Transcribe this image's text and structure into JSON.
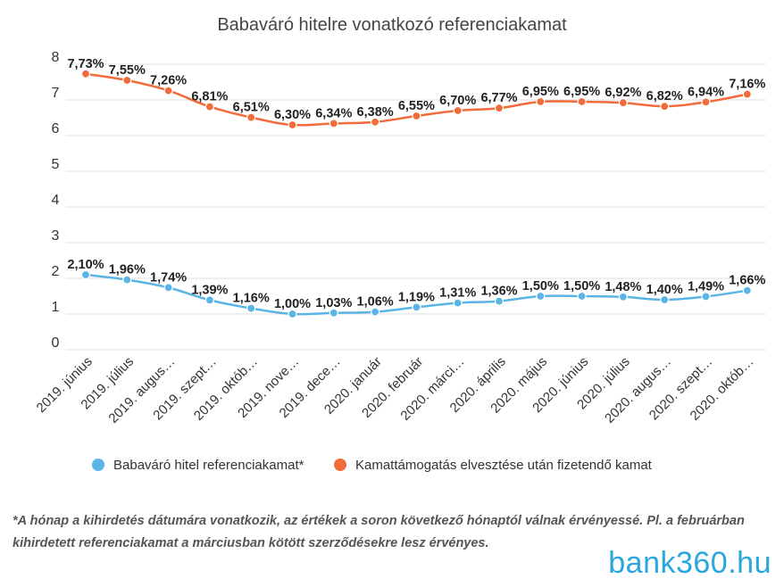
{
  "chart_data": {
    "type": "line",
    "title": "Babaváró hitelre vonatkozó referenciakamat",
    "categories": [
      "2019. június",
      "2019. július",
      "2019. augus…",
      "2019. szept…",
      "2019. októb…",
      "2019. nove…",
      "2019. dece…",
      "2020. január",
      "2020. február",
      "2020. márci…",
      "2020. április",
      "2020. május",
      "2020. június",
      "2020. július",
      "2020. augus…",
      "2020. szept…",
      "2020. októb…"
    ],
    "series": [
      {
        "name": "Babaváró hitel referenciakamat*",
        "color": "#5ab4e5",
        "values": [
          2.1,
          1.96,
          1.74,
          1.39,
          1.16,
          1.0,
          1.03,
          1.06,
          1.19,
          1.31,
          1.36,
          1.5,
          1.5,
          1.48,
          1.4,
          1.49,
          1.66
        ],
        "labels": [
          "2,10%",
          "1,96%",
          "1,74%",
          "1,39%",
          "1,16%",
          "1,00%",
          "1,03%",
          "1,06%",
          "1,19%",
          "1,31%",
          "1,36%",
          "1,50%",
          "1,50%",
          "1,48%",
          "1,40%",
          "1,49%",
          "1,66%"
        ]
      },
      {
        "name": "Kamattámogatás elvesztése után fizetendő kamat",
        "color": "#f26b3a",
        "values": [
          7.73,
          7.55,
          7.26,
          6.81,
          6.51,
          6.3,
          6.34,
          6.38,
          6.55,
          6.7,
          6.77,
          6.95,
          6.95,
          6.92,
          6.82,
          6.94,
          7.16
        ],
        "labels": [
          "7,73%",
          "7,55%",
          "7,26%",
          "6,81%",
          "6,51%",
          "6,30%",
          "6,34%",
          "6,38%",
          "6,55%",
          "6,70%",
          "6,77%",
          "6,95%",
          "6,95%",
          "6,92%",
          "6,82%",
          "6,94%",
          "7,16%"
        ]
      }
    ],
    "ylim": [
      0,
      8
    ],
    "yticks": [
      "0",
      "1",
      "2",
      "3",
      "4",
      "5",
      "6",
      "7",
      "8"
    ],
    "grid": true,
    "legend_position": "bottom"
  },
  "footnote": "*A hónap a kihirdetés dátumára vonatkozik, az értékek a soron következő hónaptól válnak érvényessé. Pl. a februárban kihirdetett referenciakamat a márciusban kötött szerződésekre lesz érvényes.",
  "logo_text": "bank360.hu"
}
